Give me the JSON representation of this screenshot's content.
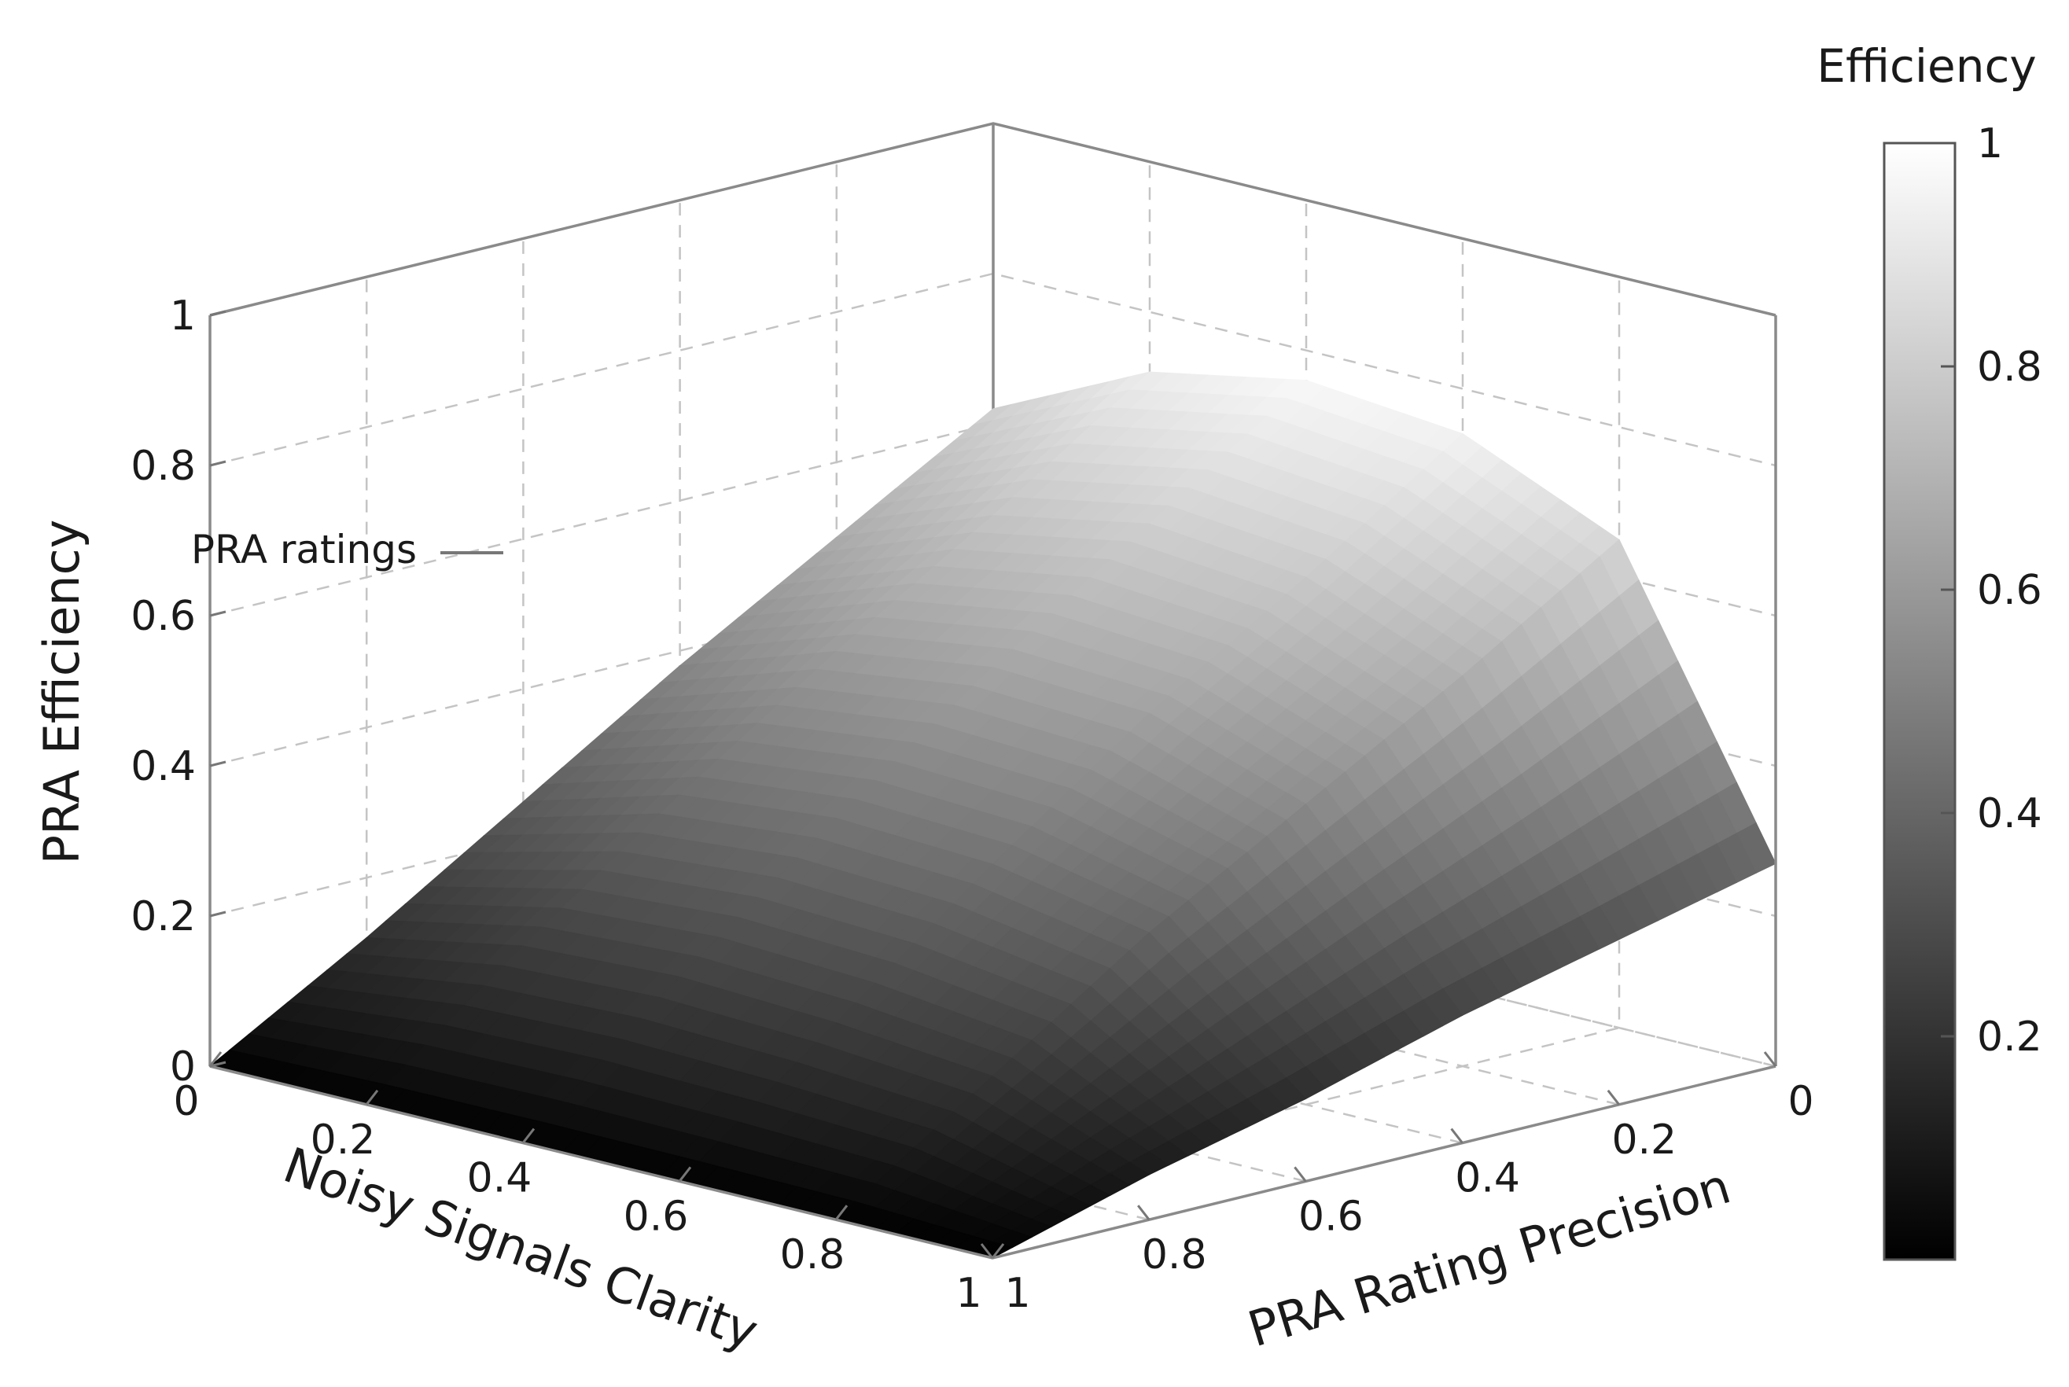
{
  "chart_data": {
    "type": "surface3d",
    "xlabel": "Noisy Signals Clarity",
    "ylabel": "PRA Rating Precision",
    "zlabel": "PRA Efficiency",
    "xlim": [
      0,
      1
    ],
    "ylim": [
      0,
      1
    ],
    "zlim": [
      0,
      1
    ],
    "x_ticks": [
      "0",
      "0.2",
      "0.4",
      "0.6",
      "0.8",
      "1"
    ],
    "y_ticks": [
      "0",
      "0.2",
      "0.4",
      "0.6",
      "0.8",
      "1"
    ],
    "z_ticks": [
      "0",
      "0.2",
      "0.4",
      "0.6",
      "0.8",
      "1"
    ],
    "grid": true,
    "colormap": "grayscale",
    "colorbar": {
      "title": "Efficiency",
      "ticks": [
        "0.2",
        "0.4",
        "0.6",
        "0.8",
        "1"
      ],
      "range": [
        0,
        1
      ],
      "low_color": "#000000",
      "high_color": "#ffffff"
    },
    "legend": {
      "label": "PRA ratings",
      "placement": "top-left"
    },
    "x": [
      0,
      0.2,
      0.4,
      0.6,
      0.8,
      1
    ],
    "y": [
      0,
      0.2,
      0.4,
      0.6,
      0.8,
      1
    ],
    "z": [
      [
        0.62,
        0.72,
        0.76,
        0.74,
        0.65,
        0.27
      ],
      [
        0.5,
        0.58,
        0.62,
        0.6,
        0.52,
        0.22
      ],
      [
        0.38,
        0.45,
        0.48,
        0.47,
        0.4,
        0.17
      ],
      [
        0.25,
        0.31,
        0.33,
        0.32,
        0.28,
        0.11
      ],
      [
        0.12,
        0.16,
        0.17,
        0.16,
        0.14,
        0.06
      ],
      [
        0.0,
        0.0,
        0.0,
        0.0,
        0.0,
        0.0
      ]
    ]
  }
}
